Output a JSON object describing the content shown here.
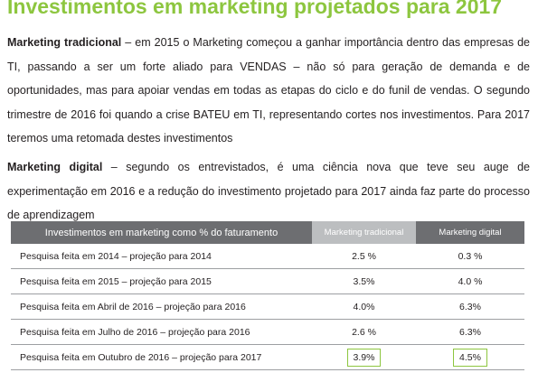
{
  "header": {
    "title": "Investimentos em marketing projetados para 2017"
  },
  "paragraphs": [
    {
      "lead": "Marketing tradicional",
      "text": " – em 2015 o Marketing começou a ganhar importância dentro das empresas de TI, passando a ser um forte aliado para VENDAS – não só para geração de demanda e de oportunidades, mas para apoiar vendas em todas as etapas do ciclo e do funil de vendas. O segundo trimestre de 2016 foi quando a crise BATEU em TI, representando cortes nos investimentos. Para 2017 teremos uma retomada destes investimentos"
    },
    {
      "lead": "Marketing digital",
      "text": " – segundo os entrevistados, é uma ciência nova que teve seu auge de experimentação em 2016 e a redução do investimento projetado para 2017 ainda faz parte do processo de aprendizagem"
    }
  ],
  "table": {
    "columns": [
      "Investimentos em marketing como % do faturamento",
      "Marketing tradicional",
      "Marketing digital"
    ],
    "rows": [
      [
        "Pesquisa feita em 2014 – projeção para 2014",
        "2.5 %",
        "0.3 %"
      ],
      [
        "Pesquisa feita em 2015 – projeção para 2015",
        "3.5%",
        "4.0 %"
      ],
      [
        "Pesquisa feita em Abril de 2016 – projeção para 2016",
        "4.0%",
        "6.3%"
      ],
      [
        "Pesquisa feita em Julho de 2016 – projeção para 2016",
        "2.6 %",
        "6.3%"
      ],
      [
        "Pesquisa feita em Outubro de 2016 – projeção para 2017",
        "3.9%",
        "4.5%"
      ]
    ]
  }
}
